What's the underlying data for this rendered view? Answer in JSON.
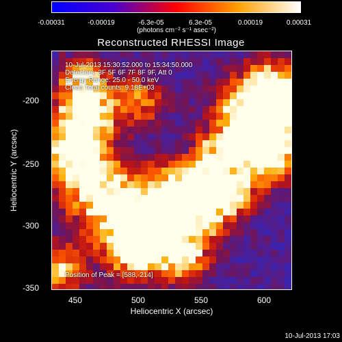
{
  "colorbar": {
    "ticks": [
      "-0.00031",
      "-0.00019",
      "-6.3e-05",
      "6.3e-05",
      "0.00019",
      "0.00031"
    ],
    "units": "(photons cm⁻² s⁻¹ asec⁻²)",
    "colors": [
      "#0000ff",
      "#4a00d0",
      "#ff0000",
      "#ffa000",
      "#ffffff"
    ]
  },
  "title": "Reconstructed RHESSI Image",
  "info": {
    "time_range": "10-Jul-2013 15:30:52.000 to 15:34:50.000",
    "detectors": "Detectors: 3F 5F 6F 7F 8F 9F, Att 0",
    "energy": "Energy Range: 25.0 - 50.0 keV",
    "clean": "Clean     Total counts: 9.18E+03",
    "peak": "Position of Peak = [588,-214]"
  },
  "axes": {
    "xlabel": "Heliocentric X (arcsec)",
    "ylabel": "Heliocentric Y (arcsec)",
    "xticks": [
      "450",
      "500",
      "550",
      "600"
    ],
    "yticks": [
      "-200",
      "-250",
      "-300",
      "-350"
    ]
  },
  "timestamp": "10-Jul-2013 17:03"
}
